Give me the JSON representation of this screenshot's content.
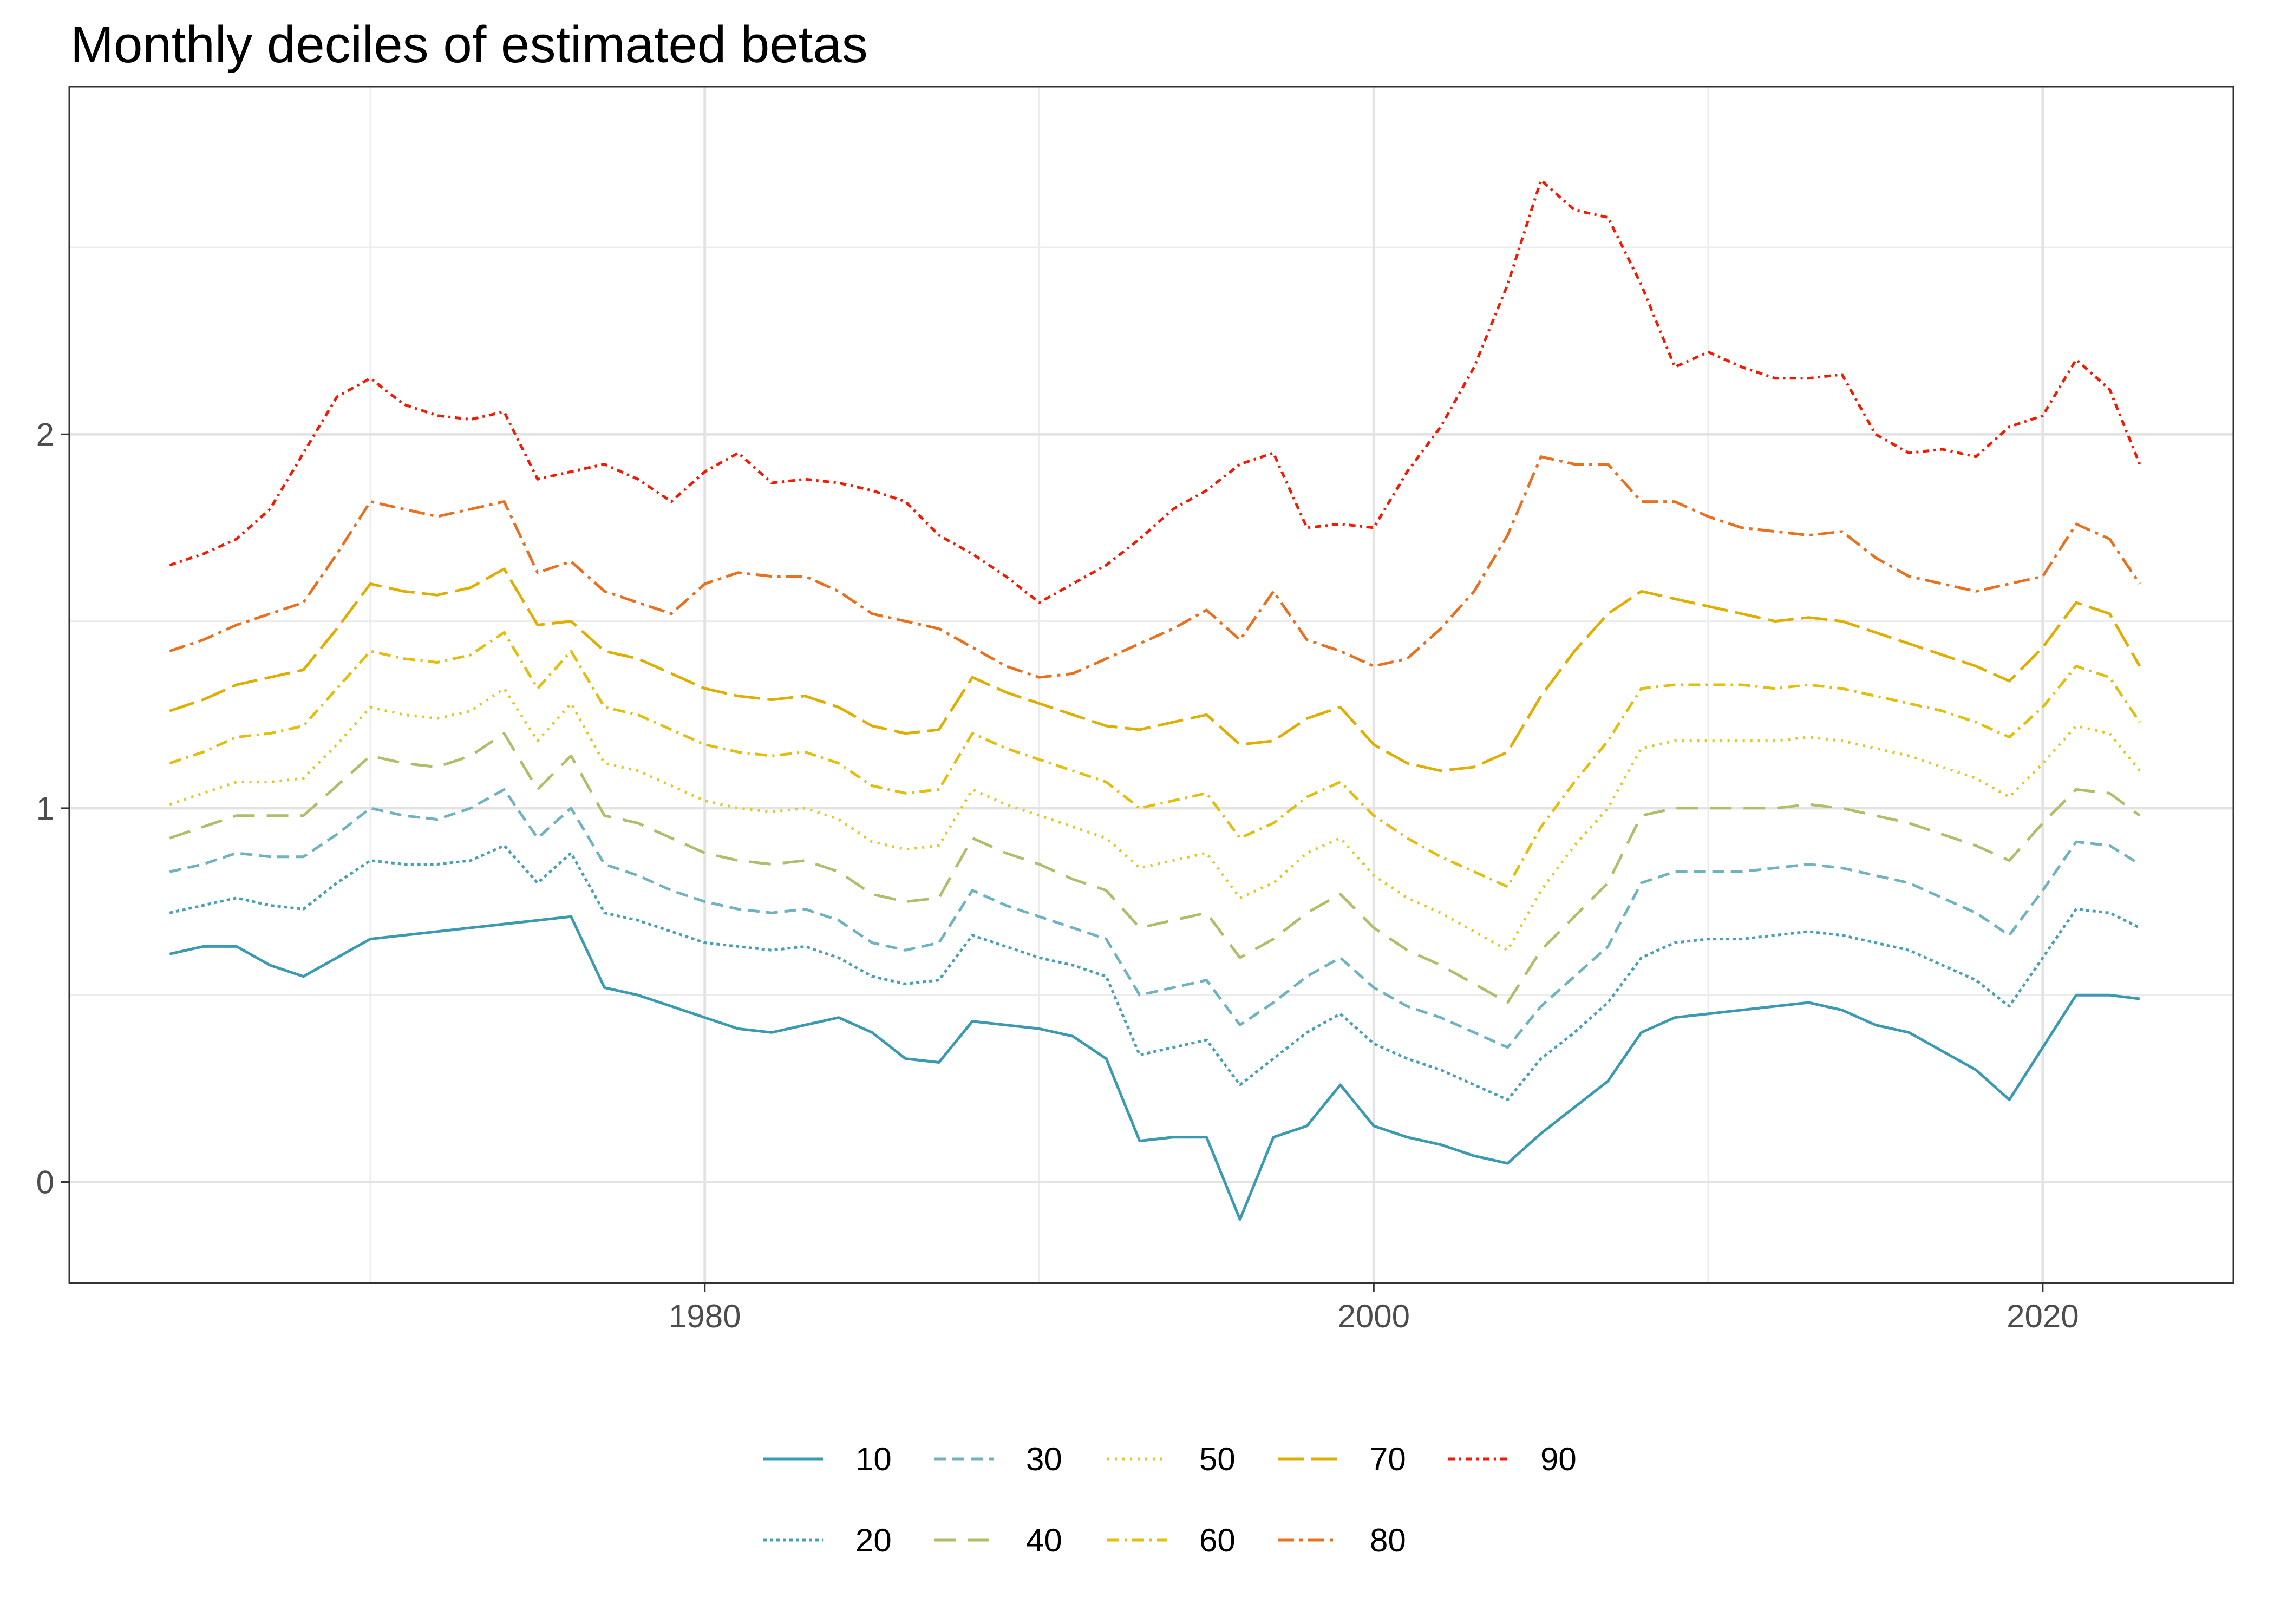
{
  "chart_data": {
    "type": "line",
    "title": "Monthly deciles of estimated betas",
    "xlabel": "",
    "ylabel": "",
    "xlim": [
      1961.0,
      2025.7
    ],
    "ylim": [
      -0.27,
      2.93
    ],
    "x_ticks": [
      {
        "value": 1980,
        "label": "1980"
      },
      {
        "value": 2000,
        "label": "2000"
      },
      {
        "value": 2020,
        "label": "2020"
      }
    ],
    "x_minor_ticks": [
      1970,
      1990,
      2010
    ],
    "y_ticks": [
      {
        "value": 0,
        "label": "0"
      },
      {
        "value": 1,
        "label": "1"
      },
      {
        "value": 2,
        "label": "2"
      }
    ],
    "y_minor_ticks": [
      0.5,
      1.5,
      2.5
    ],
    "grid": true,
    "legend_position": "bottom",
    "x": [
      1964.0,
      1965.0,
      1966.0,
      1967.0,
      1968.0,
      1969.0,
      1970.0,
      1971.0,
      1972.0,
      1973.0,
      1974.0,
      1975.0,
      1976.0,
      1977.0,
      1978.0,
      1979.0,
      1980.0,
      1981.0,
      1982.0,
      1983.0,
      1984.0,
      1985.0,
      1986.0,
      1987.0,
      1988.0,
      1989.0,
      1990.0,
      1991.0,
      1992.0,
      1993.0,
      1994.0,
      1995.0,
      1996.0,
      1997.0,
      1998.0,
      1999.0,
      2000.0,
      2001.0,
      2002.0,
      2003.0,
      2004.0,
      2005.0,
      2006.0,
      2007.0,
      2008.0,
      2009.0,
      2010.0,
      2011.0,
      2012.0,
      2013.0,
      2014.0,
      2015.0,
      2016.0,
      2017.0,
      2018.0,
      2019.0,
      2020.0,
      2021.0,
      2022.0,
      2022.9
    ],
    "series": [
      {
        "name": "10",
        "color": "#3A9AB2",
        "dash": "none",
        "values": [
          0.61,
          0.63,
          0.63,
          0.58,
          0.55,
          0.6,
          0.65,
          0.66,
          0.67,
          0.68,
          0.69,
          0.7,
          0.71,
          0.52,
          0.5,
          0.47,
          0.44,
          0.41,
          0.4,
          0.42,
          0.44,
          0.4,
          0.33,
          0.32,
          0.43,
          0.42,
          0.41,
          0.39,
          0.33,
          0.11,
          0.12,
          0.12,
          -0.1,
          0.12,
          0.15,
          0.26,
          0.15,
          0.12,
          0.1,
          0.07,
          0.05,
          0.13,
          0.2,
          0.27,
          0.4,
          0.44,
          0.45,
          0.46,
          0.47,
          0.48,
          0.46,
          0.42,
          0.4,
          0.35,
          0.3,
          0.22,
          0.36,
          0.5,
          0.5,
          0.49
        ]
      },
      {
        "name": "20",
        "color": "#48A0B5",
        "dash": "6 6",
        "values": [
          0.72,
          0.74,
          0.76,
          0.74,
          0.73,
          0.8,
          0.86,
          0.85,
          0.85,
          0.86,
          0.9,
          0.8,
          0.88,
          0.72,
          0.7,
          0.67,
          0.64,
          0.63,
          0.62,
          0.63,
          0.6,
          0.55,
          0.53,
          0.54,
          0.66,
          0.63,
          0.6,
          0.58,
          0.55,
          0.34,
          0.36,
          0.38,
          0.26,
          0.33,
          0.4,
          0.45,
          0.37,
          0.33,
          0.3,
          0.26,
          0.22,
          0.33,
          0.4,
          0.48,
          0.6,
          0.64,
          0.65,
          0.65,
          0.66,
          0.67,
          0.66,
          0.64,
          0.62,
          0.58,
          0.54,
          0.47,
          0.6,
          0.73,
          0.72,
          0.68
        ]
      },
      {
        "name": "30",
        "color": "#6FB2C1",
        "dash": "22 12",
        "values": [
          0.83,
          0.85,
          0.88,
          0.87,
          0.87,
          0.93,
          1.0,
          0.98,
          0.97,
          1.0,
          1.05,
          0.92,
          1.0,
          0.85,
          0.82,
          0.78,
          0.75,
          0.73,
          0.72,
          0.73,
          0.7,
          0.64,
          0.62,
          0.64,
          0.78,
          0.74,
          0.71,
          0.68,
          0.65,
          0.5,
          0.52,
          0.54,
          0.42,
          0.48,
          0.55,
          0.6,
          0.52,
          0.47,
          0.44,
          0.4,
          0.36,
          0.47,
          0.55,
          0.63,
          0.8,
          0.83,
          0.83,
          0.83,
          0.84,
          0.85,
          0.84,
          0.82,
          0.8,
          0.76,
          0.72,
          0.66,
          0.78,
          0.91,
          0.9,
          0.85
        ]
      },
      {
        "name": "40",
        "color": "#B2BC6A",
        "dash": "40 22",
        "values": [
          0.92,
          0.95,
          0.98,
          0.98,
          0.98,
          1.06,
          1.14,
          1.12,
          1.11,
          1.14,
          1.2,
          1.05,
          1.14,
          0.98,
          0.96,
          0.92,
          0.88,
          0.86,
          0.85,
          0.86,
          0.83,
          0.77,
          0.75,
          0.76,
          0.92,
          0.88,
          0.85,
          0.81,
          0.78,
          0.68,
          0.7,
          0.72,
          0.6,
          0.65,
          0.72,
          0.77,
          0.68,
          0.62,
          0.58,
          0.53,
          0.48,
          0.62,
          0.71,
          0.8,
          0.98,
          1.0,
          1.0,
          1.0,
          1.0,
          1.01,
          1.0,
          0.98,
          0.96,
          0.93,
          0.9,
          0.86,
          0.96,
          1.05,
          1.04,
          0.98
        ]
      },
      {
        "name": "50",
        "color": "#E4C71F",
        "dash": "4 10",
        "values": [
          1.01,
          1.04,
          1.07,
          1.07,
          1.08,
          1.17,
          1.27,
          1.25,
          1.24,
          1.26,
          1.32,
          1.18,
          1.28,
          1.12,
          1.1,
          1.06,
          1.02,
          1.0,
          0.99,
          1.0,
          0.97,
          0.91,
          0.89,
          0.9,
          1.05,
          1.01,
          0.98,
          0.95,
          0.92,
          0.84,
          0.86,
          0.88,
          0.76,
          0.8,
          0.88,
          0.92,
          0.82,
          0.76,
          0.72,
          0.67,
          0.62,
          0.78,
          0.9,
          1.0,
          1.16,
          1.18,
          1.18,
          1.18,
          1.18,
          1.19,
          1.18,
          1.16,
          1.14,
          1.11,
          1.08,
          1.03,
          1.12,
          1.22,
          1.2,
          1.1
        ]
      },
      {
        "name": "60",
        "color": "#E2BE0F",
        "dash": "22 10 4 10",
        "values": [
          1.12,
          1.15,
          1.19,
          1.2,
          1.22,
          1.32,
          1.42,
          1.4,
          1.39,
          1.41,
          1.47,
          1.32,
          1.42,
          1.27,
          1.25,
          1.21,
          1.17,
          1.15,
          1.14,
          1.15,
          1.12,
          1.06,
          1.04,
          1.05,
          1.2,
          1.16,
          1.13,
          1.1,
          1.07,
          1.0,
          1.02,
          1.04,
          0.92,
          0.96,
          1.03,
          1.07,
          0.98,
          0.92,
          0.87,
          0.83,
          0.79,
          0.95,
          1.07,
          1.18,
          1.32,
          1.33,
          1.33,
          1.33,
          1.32,
          1.33,
          1.32,
          1.3,
          1.28,
          1.26,
          1.23,
          1.19,
          1.27,
          1.38,
          1.35,
          1.23
        ]
      },
      {
        "name": "70",
        "color": "#E0AE00",
        "dash": "48 14",
        "values": [
          1.26,
          1.29,
          1.33,
          1.35,
          1.37,
          1.48,
          1.6,
          1.58,
          1.57,
          1.59,
          1.64,
          1.49,
          1.5,
          1.42,
          1.4,
          1.36,
          1.32,
          1.3,
          1.29,
          1.3,
          1.27,
          1.22,
          1.2,
          1.21,
          1.35,
          1.31,
          1.28,
          1.25,
          1.22,
          1.21,
          1.23,
          1.25,
          1.17,
          1.18,
          1.24,
          1.27,
          1.17,
          1.12,
          1.1,
          1.11,
          1.15,
          1.3,
          1.42,
          1.52,
          1.58,
          1.56,
          1.54,
          1.52,
          1.5,
          1.51,
          1.5,
          1.47,
          1.44,
          1.41,
          1.38,
          1.34,
          1.43,
          1.55,
          1.52,
          1.38
        ]
      },
      {
        "name": "80",
        "color": "#E8701E",
        "dash": "30 10 6 10",
        "values": [
          1.42,
          1.45,
          1.49,
          1.52,
          1.55,
          1.68,
          1.82,
          1.8,
          1.78,
          1.8,
          1.82,
          1.63,
          1.66,
          1.58,
          1.55,
          1.52,
          1.6,
          1.63,
          1.62,
          1.62,
          1.58,
          1.52,
          1.5,
          1.48,
          1.43,
          1.38,
          1.35,
          1.36,
          1.4,
          1.44,
          1.48,
          1.53,
          1.45,
          1.58,
          1.45,
          1.42,
          1.38,
          1.4,
          1.48,
          1.58,
          1.73,
          1.94,
          1.92,
          1.92,
          1.82,
          1.82,
          1.78,
          1.75,
          1.74,
          1.73,
          1.74,
          1.67,
          1.62,
          1.6,
          1.58,
          1.6,
          1.62,
          1.76,
          1.72,
          1.6
        ]
      },
      {
        "name": "90",
        "color": "#F21A00",
        "dash": "12 8 4 8",
        "values": [
          1.65,
          1.68,
          1.72,
          1.8,
          1.95,
          2.1,
          2.15,
          2.08,
          2.05,
          2.04,
          2.06,
          1.88,
          1.9,
          1.92,
          1.88,
          1.82,
          1.9,
          1.95,
          1.87,
          1.88,
          1.87,
          1.85,
          1.82,
          1.73,
          1.68,
          1.62,
          1.55,
          1.6,
          1.65,
          1.72,
          1.8,
          1.85,
          1.92,
          1.95,
          1.75,
          1.76,
          1.75,
          1.9,
          2.02,
          2.18,
          2.4,
          2.68,
          2.6,
          2.58,
          2.4,
          2.18,
          2.22,
          2.18,
          2.15,
          2.15,
          2.16,
          2.0,
          1.95,
          1.96,
          1.94,
          2.02,
          2.05,
          2.2,
          2.12,
          1.92
        ]
      }
    ]
  }
}
